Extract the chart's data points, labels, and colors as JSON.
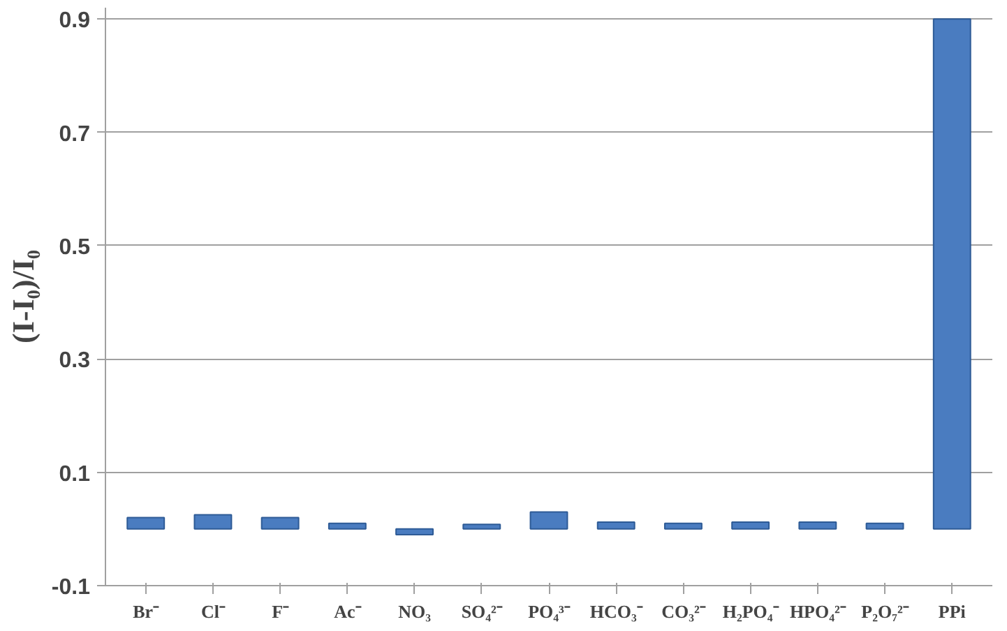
{
  "chart_data": {
    "type": "bar",
    "ylabel": "(I-I₀)/I₀",
    "categories": [
      "Br⁻",
      "Cl⁻",
      "F⁻",
      "Ac⁻",
      "NO₃",
      "SO₄²⁻",
      "PO₄³⁻",
      "HCO₃⁻",
      "CO₃²⁻",
      "H₂PO₄⁻",
      "HPO₄²⁻",
      "P₂O₇²⁻",
      "PPi"
    ],
    "values": [
      0.02,
      0.025,
      0.02,
      0.01,
      -0.01,
      0.008,
      0.03,
      0.012,
      0.01,
      0.012,
      0.012,
      0.01,
      0.9
    ],
    "color": "#4a7cc0",
    "ylim": [
      -0.1,
      0.92
    ],
    "yticks": [
      -0.1,
      0.1,
      0.3,
      0.5,
      0.7,
      0.9
    ],
    "grid": "y"
  }
}
